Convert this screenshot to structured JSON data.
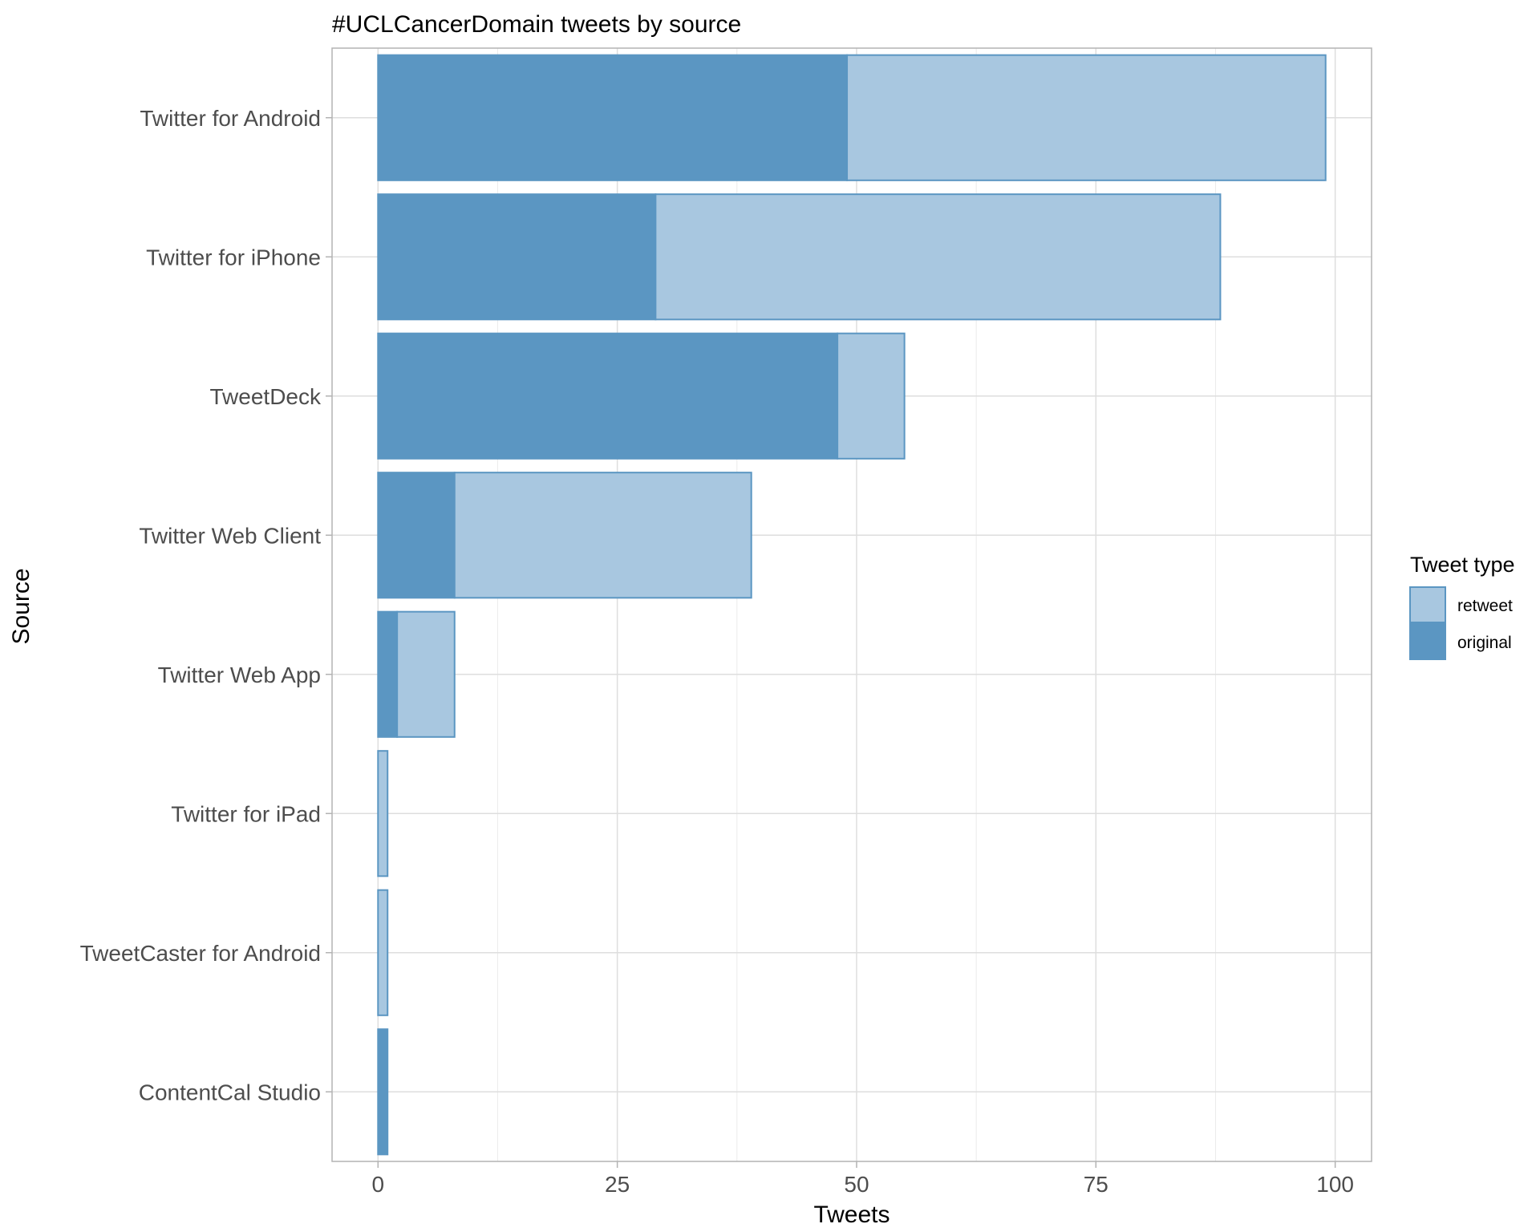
{
  "chart_data": {
    "type": "bar",
    "orientation": "horizontal",
    "stacked": true,
    "title": "#UCLCancerDomain tweets by source",
    "xlabel": "Tweets",
    "ylabel": "Source",
    "xlim": [
      -4.8,
      103.8
    ],
    "xticks": [
      0,
      25,
      50,
      75,
      100
    ],
    "grid": true,
    "categories": [
      "Twitter for Android",
      "Twitter for iPhone",
      "TweetDeck",
      "Twitter Web Client",
      "Twitter Web App",
      "Twitter for iPad",
      "TweetCaster for Android",
      "ContentCal Studio"
    ],
    "series": [
      {
        "name": "original",
        "color": "#5b96c2",
        "values": [
          49,
          29,
          48,
          8,
          2,
          0,
          0,
          1
        ]
      },
      {
        "name": "retweet",
        "color": "#a8c7e0",
        "values": [
          50,
          59,
          7,
          31,
          6,
          1,
          1,
          0
        ]
      }
    ],
    "legend": {
      "title": "Tweet type",
      "position": "right",
      "items": [
        {
          "label": "retweet",
          "color": "#a8c7e0"
        },
        {
          "label": "original",
          "color": "#5b96c2"
        }
      ]
    },
    "bar_outline_color": "#5b96c2"
  }
}
